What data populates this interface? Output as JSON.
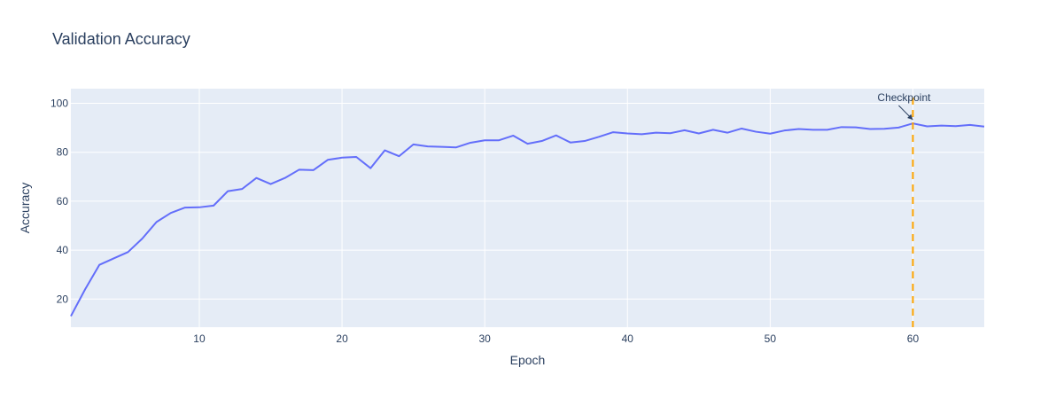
{
  "chart_data": {
    "type": "line",
    "title": "Validation Accuracy",
    "xlabel": "Epoch",
    "ylabel": "Accuracy",
    "xlim": [
      1,
      65
    ],
    "ylim": [
      8.5,
      106
    ],
    "xticks": [
      10,
      20,
      30,
      40,
      50,
      60
    ],
    "yticks": [
      20,
      40,
      60,
      80,
      100
    ],
    "grid": true,
    "colors": {
      "line": "#636efa",
      "plot_bg": "#e5ecf6",
      "grid": "#ffffff",
      "checkpoint": "#ffa500",
      "text": "#2a3f5f"
    },
    "series": [
      {
        "x": [
          1,
          2,
          3,
          4,
          5,
          6,
          7,
          8,
          9,
          10,
          11,
          12,
          13,
          14,
          15,
          16,
          17,
          18,
          19,
          20,
          21,
          22,
          23,
          24,
          25,
          26,
          27,
          28,
          29,
          30,
          31,
          32,
          33,
          34,
          35,
          36,
          37,
          38,
          39,
          40,
          41,
          42,
          43,
          44,
          45,
          46,
          47,
          48,
          49,
          50,
          51,
          52,
          53,
          54,
          55,
          56,
          57,
          58,
          59,
          60,
          61,
          62,
          63,
          64,
          65
        ],
        "y": [
          13,
          24,
          34,
          36.6,
          39.2,
          44.7,
          51.5,
          55.2,
          57.4,
          57.5,
          58.2,
          64.1,
          65,
          69.5,
          67,
          69.5,
          72.9,
          72.7,
          76.9,
          77.8,
          78.1,
          73.5,
          80.8,
          78.4,
          83.2,
          82.4,
          82.2,
          82,
          83.9,
          84.9,
          84.9,
          86.8,
          83.5,
          84.6,
          86.9,
          84,
          84.6,
          86.3,
          88.2,
          87.7,
          87.4,
          88,
          87.8,
          89,
          87.7,
          89.2,
          88,
          89.7,
          88.4,
          87.6,
          88.9,
          89.5,
          89.2,
          89.2,
          90.3,
          90.2,
          89.5,
          89.6,
          90.1,
          91.8,
          90.6,
          90.9,
          90.7,
          91.2,
          90.5
        ]
      }
    ],
    "checkpoint": {
      "epoch": 60,
      "accuracy": 91.8,
      "label": "Checkpoint"
    }
  }
}
